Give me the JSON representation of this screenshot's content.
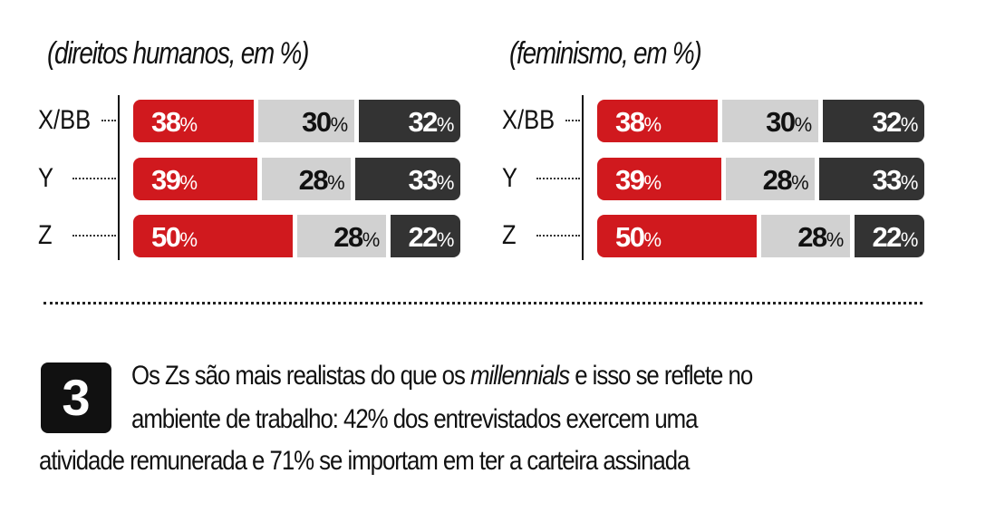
{
  "chart_data": [
    {
      "type": "bar",
      "stacked": true,
      "orientation": "horizontal",
      "subtitle": "(direitos humanos, em %)",
      "categories": [
        "X/BB",
        "Y",
        "Z"
      ],
      "series": [
        {
          "values": [
            38,
            39,
            50
          ]
        },
        {
          "values": [
            30,
            28,
            28
          ]
        },
        {
          "values": [
            32,
            33,
            22
          ]
        }
      ],
      "unit": "%",
      "colors": [
        "#d0191e",
        "#d1d1d1",
        "#333333"
      ]
    },
    {
      "type": "bar",
      "stacked": true,
      "orientation": "horizontal",
      "subtitle": "(feminismo, em %)",
      "categories": [
        "X/BB",
        "Y",
        "Z"
      ],
      "series": [
        {
          "values": [
            38,
            39,
            50
          ]
        },
        {
          "values": [
            30,
            28,
            28
          ]
        },
        {
          "values": [
            32,
            33,
            22
          ]
        }
      ],
      "unit": "%",
      "colors": [
        "#d0191e",
        "#d1d1d1",
        "#333333"
      ]
    }
  ],
  "item3": {
    "number": "3",
    "line1_a": "Os Zs são mais realistas do que os ",
    "line1_em": "millennials",
    "line1_b": " e isso se reflete no",
    "line2": "ambiente de trabalho: 42% dos entrevistados exercem uma",
    "line3": "atividade remunerada e 71% se importam em ter a carteira assinada"
  }
}
